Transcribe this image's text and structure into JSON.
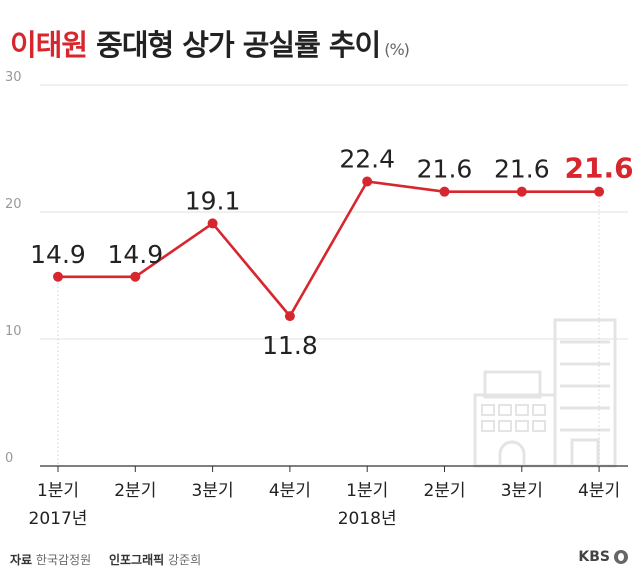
{
  "title": {
    "highlight": "이태원",
    "rest": " 중대형 상가 공실률 추이",
    "unit": "(%)"
  },
  "chart_data": {
    "type": "line",
    "title": "이태원 중대형 상가 공실률 추이",
    "unit": "(%)",
    "categories": [
      "1분기",
      "2분기",
      "3분기",
      "4분기",
      "1분기",
      "2분기",
      "3분기",
      "4분기"
    ],
    "years": [
      {
        "label": "2017년",
        "index": 0
      },
      {
        "label": "2018년",
        "index": 4
      }
    ],
    "values": [
      14.9,
      14.9,
      19.1,
      11.8,
      22.4,
      21.6,
      21.6,
      21.6
    ],
    "labels": [
      "14.9",
      "14.9",
      "19.1",
      "11.8",
      "22.4",
      "21.6",
      "21.6",
      "21.6"
    ],
    "highlight_index": 7,
    "ylim": [
      0,
      30
    ],
    "yticks": [
      "0",
      "10",
      "20",
      "30"
    ],
    "grid": true,
    "colors": {
      "line": "#d7262e",
      "highlight": "#d7262e",
      "grid": "#e2e2e2",
      "axis": "#333333",
      "label": "#222222",
      "building": "#e4e4e4"
    }
  },
  "footer": {
    "source_label": "자료",
    "source": "한국감정원",
    "infographic_label": "인포그래픽",
    "infographic": "강준희"
  },
  "brand": "KBS"
}
